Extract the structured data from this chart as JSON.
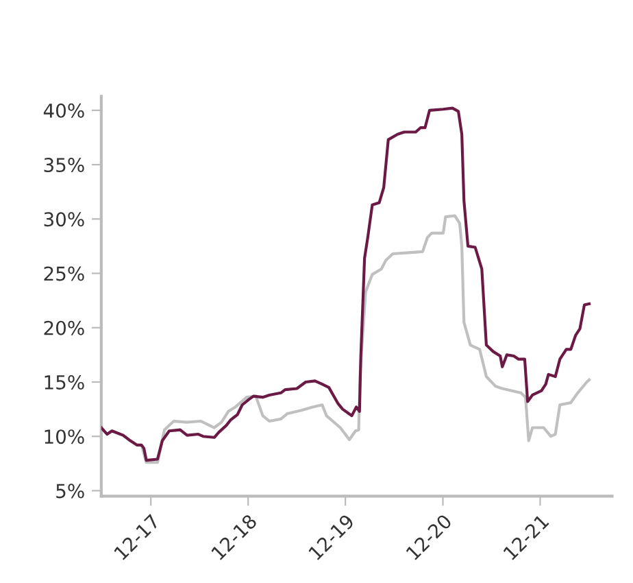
{
  "chart_data": {
    "type": "line",
    "series": [
      {
        "color": "#6b1a45",
        "x": [
          "2017-05-29",
          "2017-06-20",
          "2017-07-08",
          "2017-08-19",
          "2017-09-15",
          "2017-10-10",
          "2017-10-27",
          "2017-11-05",
          "2017-11-14",
          "2017-12-26",
          "2018-01-13",
          "2018-02-08",
          "2018-03-21",
          "2018-04-16",
          "2018-05-28",
          "2018-06-15",
          "2018-07-27",
          "2018-08-14",
          "2018-09-10",
          "2018-09-26",
          "2018-10-22",
          "2018-11-09",
          "2018-12-04",
          "2018-12-21",
          "2019-01-25",
          "2019-02-19",
          "2019-04-03",
          "2019-04-19",
          "2019-06-02",
          "2019-07-05",
          "2019-08-09",
          "2019-09-05",
          "2019-09-30",
          "2019-11-04",
          "2019-11-21",
          "2019-12-25",
          "2020-01-11",
          "2020-01-23",
          "2020-01-28",
          "2020-02-11",
          "2020-02-23",
          "2020-03-11",
          "2020-04-06",
          "2020-04-23",
          "2020-05-10",
          "2020-06-14",
          "2020-07-09",
          "2020-08-21",
          "2020-09-08",
          "2020-09-25",
          "2020-10-12",
          "2020-12-02",
          "2021-01-06",
          "2021-01-28",
          "2021-02-10",
          "2021-02-18",
          "2021-03-05",
          "2021-04-01",
          "2021-04-26",
          "2021-05-13",
          "2021-06-08",
          "2021-07-04",
          "2021-07-12",
          "2021-07-29",
          "2021-08-24",
          "2021-09-11",
          "2021-10-04",
          "2021-10-15",
          "2021-11-02",
          "2021-12-06",
          "2021-12-22",
          "2022-01-01",
          "2022-01-27",
          "2022-02-13",
          "2022-03-09",
          "2022-03-26",
          "2022-04-13",
          "2022-04-29",
          "2022-05-16",
          "2022-06-03"
        ],
        "values": [
          10.8,
          10.2,
          10.5,
          10.1,
          9.6,
          9.2,
          9.2,
          8.9,
          7.8,
          7.9,
          9.6,
          10.5,
          10.6,
          10.1,
          10.2,
          10.0,
          9.9,
          10.4,
          11.0,
          11.5,
          12.0,
          12.9,
          13.4,
          13.7,
          13.6,
          13.8,
          14.0,
          14.3,
          14.4,
          15.0,
          15.1,
          14.8,
          14.5,
          13.0,
          12.5,
          11.9,
          12.7,
          12.3,
          17.4,
          26.4,
          28.3,
          31.3,
          31.5,
          32.9,
          37.3,
          37.8,
          38.0,
          38.0,
          38.4,
          38.4,
          40.0,
          40.1,
          40.2,
          39.9,
          37.8,
          31.7,
          27.5,
          27.4,
          25.4,
          18.4,
          17.8,
          17.4,
          16.4,
          17.5,
          17.4,
          17.1,
          17.1,
          13.2,
          13.8,
          14.2,
          14.8,
          15.7,
          15.5,
          17.1,
          18.0,
          18.0,
          19.3,
          19.9,
          22.1,
          22.2
        ]
      },
      {
        "color": "#c0c0c0",
        "x": [
          "2017-05-29",
          "2017-06-20",
          "2017-07-08",
          "2017-08-19",
          "2017-09-15",
          "2017-10-10",
          "2017-10-27",
          "2017-11-14",
          "2017-12-26",
          "2018-01-21",
          "2018-02-25",
          "2018-04-16",
          "2018-06-07",
          "2018-07-27",
          "2018-08-23",
          "2018-09-18",
          "2018-10-14",
          "2018-11-26",
          "2018-12-30",
          "2019-01-25",
          "2019-02-19",
          "2019-04-03",
          "2019-04-28",
          "2019-06-19",
          "2019-07-31",
          "2019-09-05",
          "2019-09-21",
          "2019-11-12",
          "2019-12-16",
          "2020-01-08",
          "2020-01-20",
          "2020-01-25",
          "2020-02-15",
          "2020-03-11",
          "2020-04-14",
          "2020-05-01",
          "2020-05-27",
          "2020-07-26",
          "2020-09-16",
          "2020-10-04",
          "2020-10-20",
          "2020-12-02",
          "2020-12-11",
          "2021-01-15",
          "2021-02-02",
          "2021-02-10",
          "2021-02-18",
          "2021-03-14",
          "2021-04-18",
          "2021-05-13",
          "2021-06-17",
          "2021-07-12",
          "2021-09-20",
          "2021-10-07",
          "2021-10-19",
          "2021-11-02",
          "2021-12-14",
          "2022-01-10",
          "2022-01-27",
          "2022-02-13",
          "2022-03-26",
          "2022-04-21",
          "2022-05-25",
          "2022-06-03"
        ],
        "values": [
          10.8,
          10.2,
          10.5,
          10.1,
          9.6,
          9.2,
          9.2,
          7.6,
          7.6,
          10.6,
          11.4,
          11.3,
          11.4,
          10.8,
          11.3,
          12.3,
          12.7,
          13.6,
          13.7,
          11.9,
          11.4,
          11.6,
          12.1,
          12.4,
          12.7,
          12.9,
          11.9,
          10.8,
          9.7,
          10.5,
          10.6,
          15.7,
          23.3,
          24.9,
          25.4,
          26.2,
          26.8,
          26.9,
          27.0,
          28.3,
          28.7,
          28.7,
          30.2,
          30.3,
          29.6,
          27.5,
          20.5,
          18.4,
          18.0,
          15.5,
          14.6,
          14.4,
          14.0,
          13.6,
          9.6,
          10.8,
          10.8,
          10.0,
          10.2,
          12.9,
          13.1,
          14.0,
          15.0,
          15.2
        ]
      }
    ],
    "xlim": [
      "2017-05-29",
      "2022-08-28"
    ],
    "xticks": [
      {
        "value": "2017-12-01",
        "label": "12-17"
      },
      {
        "value": "2018-12-01",
        "label": "12-18"
      },
      {
        "value": "2019-12-01",
        "label": "12-19"
      },
      {
        "value": "2020-12-01",
        "label": "12-20"
      },
      {
        "value": "2021-12-01",
        "label": "12-21"
      }
    ],
    "ylim": [
      4.5,
      41.3
    ],
    "yticks": [
      {
        "value": 5,
        "label": "5%"
      },
      {
        "value": 10,
        "label": "10%"
      },
      {
        "value": 15,
        "label": "15%"
      },
      {
        "value": 20,
        "label": "20%"
      },
      {
        "value": 25,
        "label": "25%"
      },
      {
        "value": 30,
        "label": "30%"
      },
      {
        "value": 35,
        "label": "35%"
      },
      {
        "value": 40,
        "label": "40%"
      }
    ],
    "grid": false,
    "legend": false
  }
}
